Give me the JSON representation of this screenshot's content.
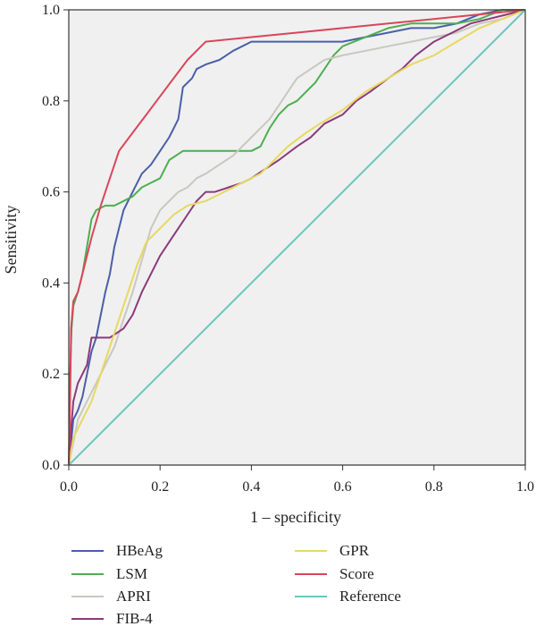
{
  "chart_data": {
    "type": "line",
    "title": "",
    "xlabel": "1 – specificity",
    "ylabel": "Sensitivity",
    "xlim": [
      0,
      1
    ],
    "ylim": [
      0,
      1
    ],
    "x_ticks": [
      "0.0",
      "0.2",
      "0.4",
      "0.6",
      "0.8",
      "1.0"
    ],
    "y_ticks": [
      "0.0",
      "0.2",
      "0.4",
      "0.6",
      "0.8",
      "1.0"
    ],
    "grid": false,
    "background": "#f0f0f0",
    "legend_position": "bottom",
    "series": [
      {
        "name": "HBeAg",
        "color": "#4a5fa8",
        "points": [
          [
            0,
            0
          ],
          [
            0.005,
            0.05
          ],
          [
            0.01,
            0.1
          ],
          [
            0.02,
            0.12
          ],
          [
            0.03,
            0.15
          ],
          [
            0.04,
            0.2
          ],
          [
            0.05,
            0.25
          ],
          [
            0.06,
            0.28
          ],
          [
            0.07,
            0.33
          ],
          [
            0.08,
            0.38
          ],
          [
            0.09,
            0.42
          ],
          [
            0.1,
            0.48
          ],
          [
            0.11,
            0.52
          ],
          [
            0.12,
            0.56
          ],
          [
            0.14,
            0.6
          ],
          [
            0.16,
            0.64
          ],
          [
            0.18,
            0.66
          ],
          [
            0.2,
            0.69
          ],
          [
            0.22,
            0.72
          ],
          [
            0.24,
            0.76
          ],
          [
            0.25,
            0.83
          ],
          [
            0.27,
            0.85
          ],
          [
            0.28,
            0.87
          ],
          [
            0.3,
            0.88
          ],
          [
            0.33,
            0.89
          ],
          [
            0.36,
            0.91
          ],
          [
            0.4,
            0.93
          ],
          [
            0.5,
            0.93
          ],
          [
            0.55,
            0.93
          ],
          [
            0.6,
            0.93
          ],
          [
            0.65,
            0.94
          ],
          [
            0.7,
            0.95
          ],
          [
            0.75,
            0.96
          ],
          [
            0.8,
            0.96
          ],
          [
            0.85,
            0.97
          ],
          [
            0.9,
            0.99
          ],
          [
            0.95,
            1.0
          ],
          [
            1,
            1.0
          ]
        ]
      },
      {
        "name": "LSM",
        "color": "#4caf50",
        "points": [
          [
            0,
            0
          ],
          [
            0.003,
            0.2
          ],
          [
            0.006,
            0.3
          ],
          [
            0.01,
            0.35
          ],
          [
            0.02,
            0.38
          ],
          [
            0.03,
            0.42
          ],
          [
            0.04,
            0.48
          ],
          [
            0.05,
            0.54
          ],
          [
            0.06,
            0.56
          ],
          [
            0.08,
            0.57
          ],
          [
            0.1,
            0.57
          ],
          [
            0.12,
            0.58
          ],
          [
            0.14,
            0.59
          ],
          [
            0.16,
            0.61
          ],
          [
            0.18,
            0.62
          ],
          [
            0.2,
            0.63
          ],
          [
            0.22,
            0.67
          ],
          [
            0.25,
            0.69
          ],
          [
            0.3,
            0.69
          ],
          [
            0.35,
            0.69
          ],
          [
            0.4,
            0.69
          ],
          [
            0.42,
            0.7
          ],
          [
            0.44,
            0.74
          ],
          [
            0.46,
            0.77
          ],
          [
            0.48,
            0.79
          ],
          [
            0.5,
            0.8
          ],
          [
            0.52,
            0.82
          ],
          [
            0.54,
            0.84
          ],
          [
            0.56,
            0.87
          ],
          [
            0.58,
            0.9
          ],
          [
            0.6,
            0.92
          ],
          [
            0.65,
            0.94
          ],
          [
            0.7,
            0.96
          ],
          [
            0.75,
            0.97
          ],
          [
            0.8,
            0.97
          ],
          [
            0.85,
            0.97
          ],
          [
            0.9,
            0.98
          ],
          [
            0.95,
            1.0
          ],
          [
            1,
            1.0
          ]
        ]
      },
      {
        "name": "APRI",
        "color": "#c8c8c0",
        "points": [
          [
            0,
            0
          ],
          [
            0.01,
            0.05
          ],
          [
            0.02,
            0.1
          ],
          [
            0.04,
            0.14
          ],
          [
            0.06,
            0.18
          ],
          [
            0.08,
            0.22
          ],
          [
            0.1,
            0.26
          ],
          [
            0.12,
            0.32
          ],
          [
            0.14,
            0.38
          ],
          [
            0.16,
            0.45
          ],
          [
            0.18,
            0.52
          ],
          [
            0.2,
            0.56
          ],
          [
            0.22,
            0.58
          ],
          [
            0.24,
            0.6
          ],
          [
            0.26,
            0.61
          ],
          [
            0.28,
            0.63
          ],
          [
            0.3,
            0.64
          ],
          [
            0.33,
            0.66
          ],
          [
            0.36,
            0.68
          ],
          [
            0.38,
            0.7
          ],
          [
            0.4,
            0.72
          ],
          [
            0.42,
            0.74
          ],
          [
            0.44,
            0.76
          ],
          [
            0.46,
            0.79
          ],
          [
            0.48,
            0.82
          ],
          [
            0.5,
            0.85
          ],
          [
            0.53,
            0.87
          ],
          [
            0.56,
            0.89
          ],
          [
            0.6,
            0.9
          ],
          [
            0.65,
            0.91
          ],
          [
            0.7,
            0.92
          ],
          [
            0.75,
            0.93
          ],
          [
            0.8,
            0.94
          ],
          [
            0.85,
            0.95
          ],
          [
            0.9,
            0.97
          ],
          [
            0.95,
            0.98
          ],
          [
            1,
            1.0
          ]
        ]
      },
      {
        "name": "FIB-4",
        "color": "#8b3a7a",
        "points": [
          [
            0,
            0
          ],
          [
            0.005,
            0.08
          ],
          [
            0.01,
            0.14
          ],
          [
            0.02,
            0.18
          ],
          [
            0.04,
            0.22
          ],
          [
            0.05,
            0.28
          ],
          [
            0.07,
            0.28
          ],
          [
            0.09,
            0.28
          ],
          [
            0.12,
            0.3
          ],
          [
            0.14,
            0.33
          ],
          [
            0.16,
            0.38
          ],
          [
            0.18,
            0.42
          ],
          [
            0.2,
            0.46
          ],
          [
            0.22,
            0.49
          ],
          [
            0.24,
            0.52
          ],
          [
            0.26,
            0.55
          ],
          [
            0.28,
            0.58
          ],
          [
            0.3,
            0.6
          ],
          [
            0.32,
            0.6
          ],
          [
            0.35,
            0.61
          ],
          [
            0.38,
            0.62
          ],
          [
            0.4,
            0.63
          ],
          [
            0.43,
            0.65
          ],
          [
            0.46,
            0.67
          ],
          [
            0.5,
            0.7
          ],
          [
            0.53,
            0.72
          ],
          [
            0.56,
            0.75
          ],
          [
            0.6,
            0.77
          ],
          [
            0.63,
            0.8
          ],
          [
            0.66,
            0.82
          ],
          [
            0.7,
            0.85
          ],
          [
            0.73,
            0.87
          ],
          [
            0.76,
            0.9
          ],
          [
            0.8,
            0.93
          ],
          [
            0.84,
            0.95
          ],
          [
            0.88,
            0.97
          ],
          [
            0.92,
            0.98
          ],
          [
            0.96,
            0.99
          ],
          [
            1,
            1.0
          ]
        ]
      },
      {
        "name": "GPR",
        "color": "#e8d860",
        "points": [
          [
            0,
            0
          ],
          [
            0.01,
            0.06
          ],
          [
            0.03,
            0.1
          ],
          [
            0.05,
            0.14
          ],
          [
            0.07,
            0.2
          ],
          [
            0.09,
            0.26
          ],
          [
            0.11,
            0.32
          ],
          [
            0.13,
            0.38
          ],
          [
            0.15,
            0.44
          ],
          [
            0.17,
            0.49
          ],
          [
            0.2,
            0.52
          ],
          [
            0.23,
            0.55
          ],
          [
            0.26,
            0.57
          ],
          [
            0.3,
            0.58
          ],
          [
            0.34,
            0.6
          ],
          [
            0.38,
            0.62
          ],
          [
            0.42,
            0.64
          ],
          [
            0.45,
            0.67
          ],
          [
            0.48,
            0.7
          ],
          [
            0.52,
            0.73
          ],
          [
            0.55,
            0.75
          ],
          [
            0.6,
            0.78
          ],
          [
            0.65,
            0.82
          ],
          [
            0.7,
            0.85
          ],
          [
            0.75,
            0.88
          ],
          [
            0.8,
            0.9
          ],
          [
            0.85,
            0.93
          ],
          [
            0.9,
            0.96
          ],
          [
            0.95,
            0.98
          ],
          [
            1,
            1.0
          ]
        ]
      },
      {
        "name": "Score",
        "color": "#d9465a",
        "points": [
          [
            0,
            0
          ],
          [
            0.003,
            0.15
          ],
          [
            0.005,
            0.3
          ],
          [
            0.01,
            0.36
          ],
          [
            0.02,
            0.38
          ],
          [
            0.03,
            0.42
          ],
          [
            0.05,
            0.5
          ],
          [
            0.07,
            0.57
          ],
          [
            0.09,
            0.63
          ],
          [
            0.11,
            0.69
          ],
          [
            0.14,
            0.73
          ],
          [
            0.17,
            0.77
          ],
          [
            0.2,
            0.81
          ],
          [
            0.23,
            0.85
          ],
          [
            0.26,
            0.89
          ],
          [
            0.3,
            0.93
          ],
          [
            0.4,
            0.94
          ],
          [
            0.5,
            0.95
          ],
          [
            0.6,
            0.96
          ],
          [
            0.7,
            0.97
          ],
          [
            0.8,
            0.98
          ],
          [
            0.9,
            0.99
          ],
          [
            1,
            1.0
          ]
        ]
      },
      {
        "name": "Reference",
        "color": "#6ec5c0",
        "points": [
          [
            0,
            0
          ],
          [
            1,
            1
          ]
        ]
      }
    ]
  },
  "legend": {
    "items": [
      {
        "label": "HBeAg",
        "color": "#4a5fa8"
      },
      {
        "label": "LSM",
        "color": "#4caf50"
      },
      {
        "label": "APRI",
        "color": "#c8c8c0"
      },
      {
        "label": "FIB-4",
        "color": "#8b3a7a"
      },
      {
        "label": "GPR",
        "color": "#e8d860"
      },
      {
        "label": "Score",
        "color": "#d9465a"
      },
      {
        "label": "Reference",
        "color": "#6ec5c0"
      }
    ]
  }
}
